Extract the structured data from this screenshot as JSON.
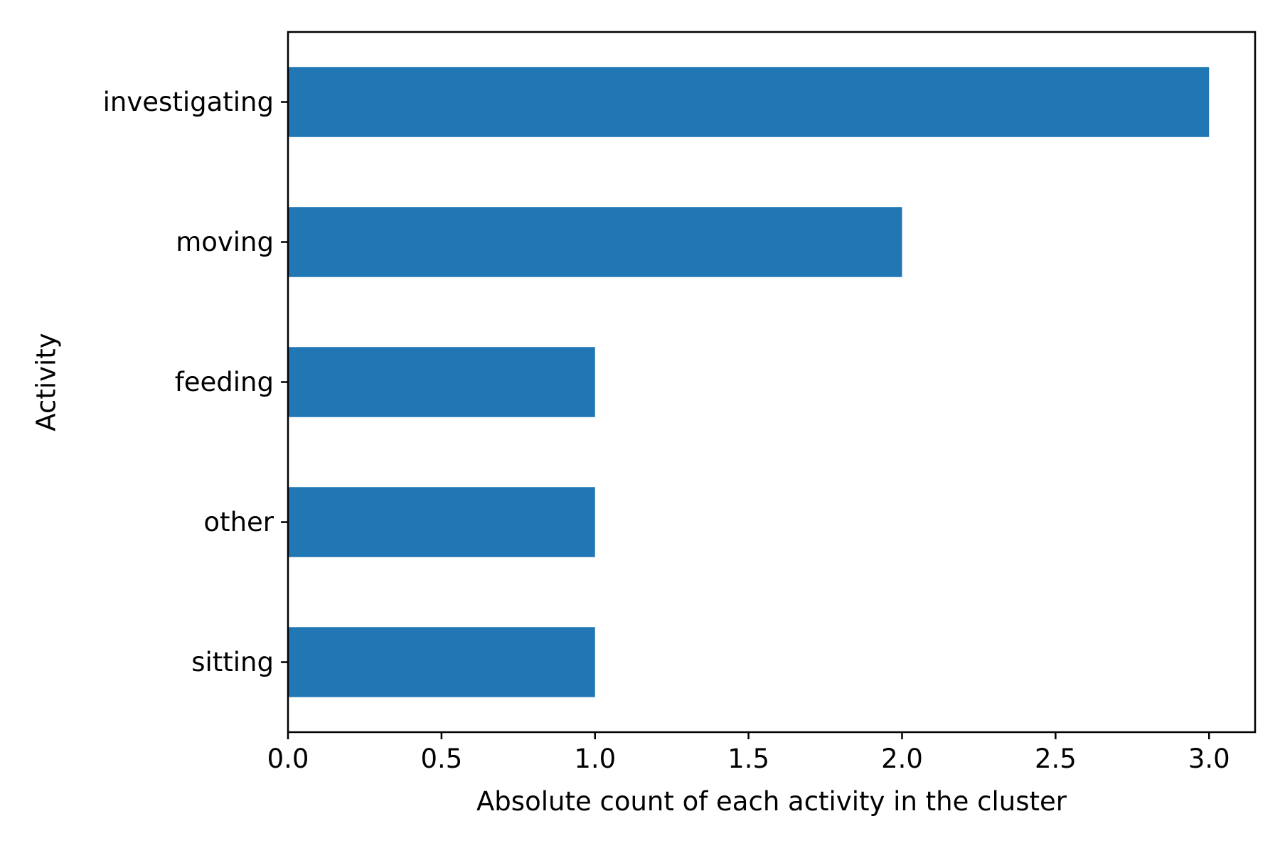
{
  "chart_data": {
    "type": "bar",
    "orientation": "horizontal",
    "categories": [
      "investigating",
      "moving",
      "feeding",
      "other",
      "sitting"
    ],
    "values": [
      3,
      2,
      1,
      1,
      1
    ],
    "title": "",
    "xlabel": "Absolute count of each activity in the cluster",
    "ylabel": "Activity",
    "xlim": [
      0,
      3.15
    ],
    "xticks": [
      0.0,
      0.5,
      1.0,
      1.5,
      2.0,
      2.5,
      3.0
    ],
    "xtick_labels": [
      "0.0",
      "0.5",
      "1.0",
      "1.5",
      "2.0",
      "2.5",
      "3.0"
    ],
    "grid": false,
    "legend": "none",
    "bar_color": "#2077b4"
  }
}
